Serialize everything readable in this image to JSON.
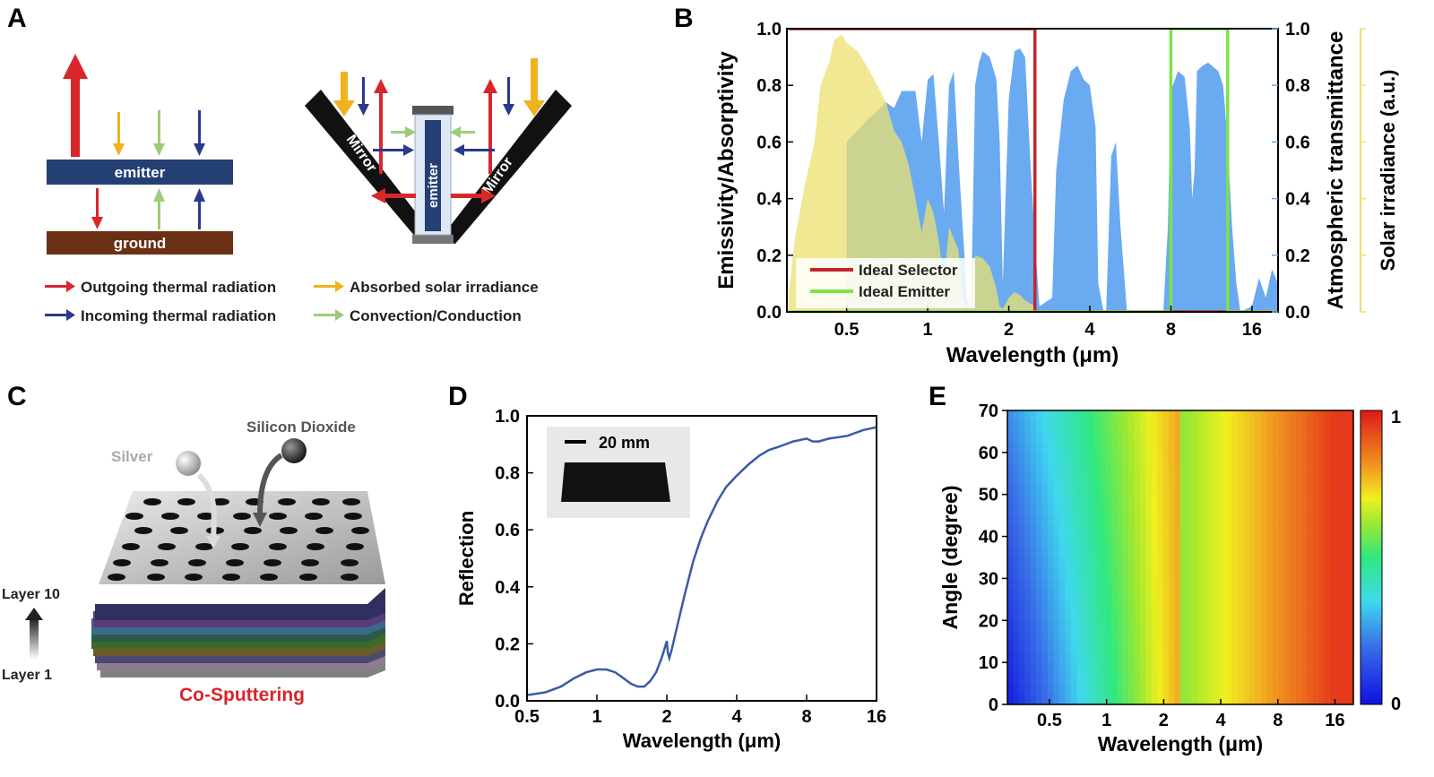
{
  "panels": {
    "A": {
      "label": "A",
      "emitter_label": "emitter",
      "ground_label": "ground",
      "mirror_label": "Mirror",
      "legend": [
        {
          "text": "Outgoing thermal radiation",
          "color": "#d9262b"
        },
        {
          "text": "Absorbed solar irradiance",
          "color": "#f0b21e"
        },
        {
          "text": "Incoming thermal radiation",
          "color": "#2b3a8c"
        },
        {
          "text": "Convection/Conduction",
          "color": "#9ccc7c"
        }
      ]
    },
    "B": {
      "label": "B"
    },
    "C": {
      "label": "C",
      "silver": "Silver",
      "sio2": "Silicon Dioxide",
      "layer_top": "Layer 10",
      "layer_bottom": "Layer 1",
      "caption": "Co-Sputtering"
    },
    "D": {
      "label": "D",
      "scale_bar": "20 mm"
    },
    "E": {
      "label": "E"
    }
  },
  "chart_data": [
    {
      "id": "B",
      "type": "area",
      "xscale": "log",
      "xlabel": "Wavelength (μm)",
      "xticks": [
        "0.5",
        "1",
        "2",
        "4",
        "8",
        "16"
      ],
      "xlim": [
        0.3,
        20
      ],
      "ylabel_left": "Emissivity/Absorptivity",
      "ylabel_right1": "Atmospheric transmittance",
      "ylabel_right2": "Solar irradiance (a.u.)",
      "ylim": [
        0,
        1
      ],
      "yticks": [
        "0.0",
        "0.2",
        "0.4",
        "0.6",
        "0.8",
        "1.0"
      ],
      "legend": [
        "Ideal Selector",
        "Ideal Emitter"
      ],
      "colors": {
        "selector": "#c0272d",
        "emitter": "#7ce34a",
        "atm": "#6aaaf0",
        "solar": "#ece070"
      },
      "series": [
        {
          "name": "Ideal Selector",
          "x": [
            0.3,
            2.5,
            2.5,
            20
          ],
          "y": [
            1,
            1,
            0,
            0
          ]
        },
        {
          "name": "Ideal Emitter",
          "x": [
            0.3,
            8,
            8,
            13,
            13,
            20
          ],
          "y": [
            0,
            0,
            1,
            1,
            0,
            0
          ]
        },
        {
          "name": "Atmospheric transmittance",
          "x": [
            0.5,
            0.6,
            0.7,
            0.75,
            0.8,
            0.9,
            0.95,
            1.0,
            1.05,
            1.1,
            1.15,
            1.2,
            1.25,
            1.3,
            1.4,
            1.45,
            1.5,
            1.55,
            1.6,
            1.7,
            1.8,
            1.85,
            1.9,
            2.0,
            2.1,
            2.2,
            2.3,
            2.4,
            2.5,
            2.6,
            2.9,
            3.0,
            3.2,
            3.4,
            3.6,
            3.8,
            4.0,
            4.2,
            4.3,
            4.5,
            4.6,
            4.8,
            5.0,
            5.2,
            5.5,
            5.7,
            6.0,
            7.5,
            7.8,
            8.0,
            8.5,
            9.0,
            9.4,
            9.6,
            9.8,
            10.0,
            10.5,
            11.0,
            12.0,
            12.5,
            13.0,
            13.5,
            14.0,
            14.5,
            16.0,
            17.0,
            18.0,
            19.0,
            20.0
          ],
          "y": [
            0.6,
            0.68,
            0.74,
            0.72,
            0.78,
            0.78,
            0.6,
            0.82,
            0.84,
            0.6,
            0.35,
            0.8,
            0.85,
            0.55,
            0.05,
            0.02,
            0.8,
            0.88,
            0.92,
            0.9,
            0.82,
            0.6,
            0.1,
            0.75,
            0.92,
            0.93,
            0.9,
            0.55,
            0.25,
            0.02,
            0.05,
            0.5,
            0.75,
            0.85,
            0.87,
            0.82,
            0.8,
            0.65,
            0.1,
            0.0,
            0.0,
            0.55,
            0.6,
            0.3,
            0.0,
            0.0,
            0.0,
            0.0,
            0.3,
            0.78,
            0.85,
            0.83,
            0.65,
            0.4,
            0.5,
            0.85,
            0.87,
            0.88,
            0.85,
            0.8,
            0.6,
            0.3,
            0.1,
            0.0,
            0.02,
            0.12,
            0.05,
            0.15,
            0.1
          ]
        },
        {
          "name": "Solar irradiance",
          "x": [
            0.3,
            0.32,
            0.35,
            0.38,
            0.4,
            0.43,
            0.45,
            0.48,
            0.5,
            0.55,
            0.6,
            0.65,
            0.7,
            0.75,
            0.8,
            0.85,
            0.9,
            0.95,
            1.0,
            1.05,
            1.1,
            1.15,
            1.2,
            1.3,
            1.35,
            1.4,
            1.5,
            1.6,
            1.7,
            1.8,
            1.85,
            1.9,
            2.0,
            2.1,
            2.2,
            2.3,
            2.4,
            2.5
          ],
          "y": [
            0.0,
            0.25,
            0.45,
            0.6,
            0.8,
            0.88,
            0.96,
            0.98,
            0.95,
            0.92,
            0.86,
            0.8,
            0.74,
            0.64,
            0.6,
            0.52,
            0.4,
            0.28,
            0.4,
            0.35,
            0.25,
            0.1,
            0.3,
            0.22,
            0.05,
            0.01,
            0.2,
            0.19,
            0.16,
            0.08,
            0.02,
            0.01,
            0.05,
            0.07,
            0.06,
            0.04,
            0.03,
            0.02
          ]
        }
      ]
    },
    {
      "id": "D",
      "type": "line",
      "xscale": "log",
      "xlabel": "Wavelength (μm)",
      "ylabel": "Reflection",
      "xlim": [
        0.5,
        16
      ],
      "ylim": [
        0,
        1
      ],
      "xticks": [
        "0.5",
        "1",
        "2",
        "4",
        "8",
        "16"
      ],
      "yticks": [
        "0.0",
        "0.2",
        "0.4",
        "0.6",
        "0.8",
        "1.0"
      ],
      "color": "#3b5aa5",
      "series": [
        {
          "name": "Reflection",
          "x": [
            0.5,
            0.6,
            0.7,
            0.8,
            0.9,
            1.0,
            1.1,
            1.2,
            1.3,
            1.4,
            1.5,
            1.6,
            1.7,
            1.8,
            1.9,
            1.95,
            2.0,
            2.02,
            2.05,
            2.1,
            2.2,
            2.4,
            2.6,
            2.8,
            3.0,
            3.3,
            3.6,
            4.0,
            4.5,
            5.0,
            5.5,
            6.0,
            7.0,
            8.0,
            8.5,
            9.0,
            10.0,
            12.0,
            14.0,
            16.0
          ],
          "y": [
            0.02,
            0.03,
            0.05,
            0.08,
            0.1,
            0.11,
            0.11,
            0.1,
            0.08,
            0.06,
            0.05,
            0.05,
            0.07,
            0.1,
            0.15,
            0.18,
            0.21,
            0.17,
            0.15,
            0.18,
            0.25,
            0.38,
            0.49,
            0.57,
            0.63,
            0.7,
            0.75,
            0.79,
            0.83,
            0.86,
            0.88,
            0.89,
            0.91,
            0.92,
            0.91,
            0.91,
            0.92,
            0.93,
            0.95,
            0.96
          ]
        }
      ]
    },
    {
      "id": "E",
      "type": "heatmap",
      "xscale": "log",
      "xlabel": "Wavelength (μm)",
      "ylabel": "Angle (degree)",
      "xticks": [
        "0.5",
        "1",
        "2",
        "4",
        "8",
        "16"
      ],
      "yticks": [
        "0",
        "10",
        "20",
        "30",
        "40",
        "50",
        "60",
        "70"
      ],
      "xlim": [
        0.3,
        20
      ],
      "ylim": [
        0,
        70
      ],
      "colorbar_ticks": [
        "1",
        "0"
      ],
      "colorbar_range": [
        0,
        1
      ]
    }
  ]
}
